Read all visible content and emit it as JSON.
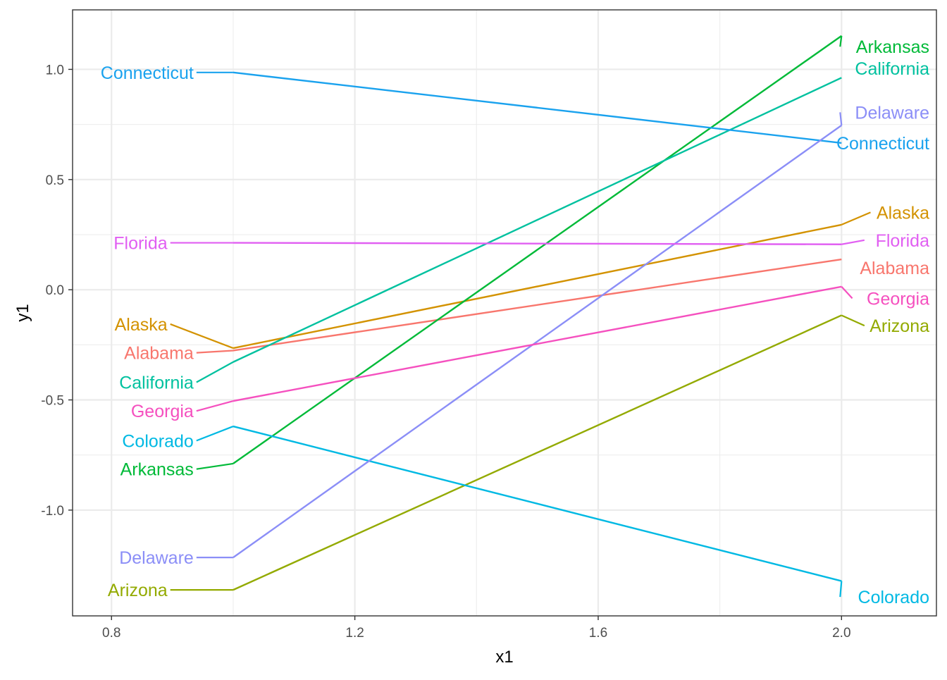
{
  "chart_data": {
    "type": "line",
    "xlabel": "x1",
    "ylabel": "y1",
    "xlim": [
      0.736,
      2.156
    ],
    "ylim": [
      -1.48,
      1.27
    ],
    "xticks": [
      0.8,
      1.2,
      1.6,
      2.0
    ],
    "yticks": [
      -1.0,
      -0.5,
      0.0,
      0.5,
      1.0
    ],
    "xtick_labels": [
      "0.8",
      "1.2",
      "1.6",
      "2.0"
    ],
    "ytick_labels": [
      "-1.0",
      "-0.5",
      "0.0",
      "0.5",
      "1.0"
    ],
    "grid": true,
    "legend": "none",
    "series": [
      {
        "name": "Alabama",
        "color": "#F8766D",
        "x": [
          1,
          2
        ],
        "y": [
          -0.276,
          0.138
        ],
        "left_label": {
          "x": 0.935,
          "y": -0.286
        },
        "right_label": {
          "x": 2.0,
          "y": 0.099
        }
      },
      {
        "name": "Alaska",
        "color": "#D39200",
        "x": [
          1,
          2
        ],
        "y": [
          -0.265,
          0.295
        ],
        "left_label": {
          "x": 0.892,
          "y": -0.156
        },
        "right_label": {
          "x": 2.05,
          "y": 0.351
        }
      },
      {
        "name": "Arizona",
        "color": "#93AA00",
        "x": [
          1,
          2
        ],
        "y": [
          -1.362,
          -0.116
        ],
        "left_label": {
          "x": 0.892,
          "y": -1.362
        },
        "right_label": {
          "x": 2.04,
          "y": -0.163
        }
      },
      {
        "name": "Arkansas",
        "color": "#00BA38",
        "x": [
          1,
          2
        ],
        "y": [
          -0.789,
          1.152
        ],
        "left_label": {
          "x": 0.935,
          "y": -0.814
        },
        "right_label": {
          "x": 2.0,
          "y": 1.103
        }
      },
      {
        "name": "California",
        "color": "#00C19F",
        "x": [
          1,
          2
        ],
        "y": [
          -0.328,
          0.962
        ],
        "left_label": {
          "x": 0.935,
          "y": -0.42
        },
        "right_label": {
          "x": 2.0,
          "y": 1.004
        }
      },
      {
        "name": "Colorado",
        "color": "#00B9E3",
        "x": [
          1,
          2
        ],
        "y": [
          -0.62,
          -1.322
        ],
        "left_label": {
          "x": 0.935,
          "y": -0.685
        },
        "right_label": {
          "x": 2.0,
          "y": -1.394
        }
      },
      {
        "name": "Connecticut",
        "color": "#1AA2EE",
        "x": [
          1,
          2
        ],
        "y": [
          0.986,
          0.666
        ],
        "left_label": {
          "x": 0.935,
          "y": 0.986
        },
        "right_label": {
          "x": 2.0,
          "y": 0.666
        }
      },
      {
        "name": "Delaware",
        "color": "#8B8EF7",
        "x": [
          1,
          2
        ],
        "y": [
          -1.215,
          0.746
        ],
        "left_label": {
          "x": 0.935,
          "y": -1.215
        },
        "right_label": {
          "x": 2.0,
          "y": 0.805
        }
      },
      {
        "name": "Florida",
        "color": "#E15FF2",
        "x": [
          1,
          2
        ],
        "y": [
          0.213,
          0.206
        ],
        "left_label": {
          "x": 0.892,
          "y": 0.213
        },
        "right_label": {
          "x": 2.04,
          "y": 0.225
        }
      },
      {
        "name": "Georgia",
        "color": "#F550BF",
        "x": [
          1,
          2
        ],
        "y": [
          -0.505,
          0.014
        ],
        "left_label": {
          "x": 0.935,
          "y": -0.55
        },
        "right_label": {
          "x": 2.02,
          "y": -0.039
        }
      }
    ]
  }
}
